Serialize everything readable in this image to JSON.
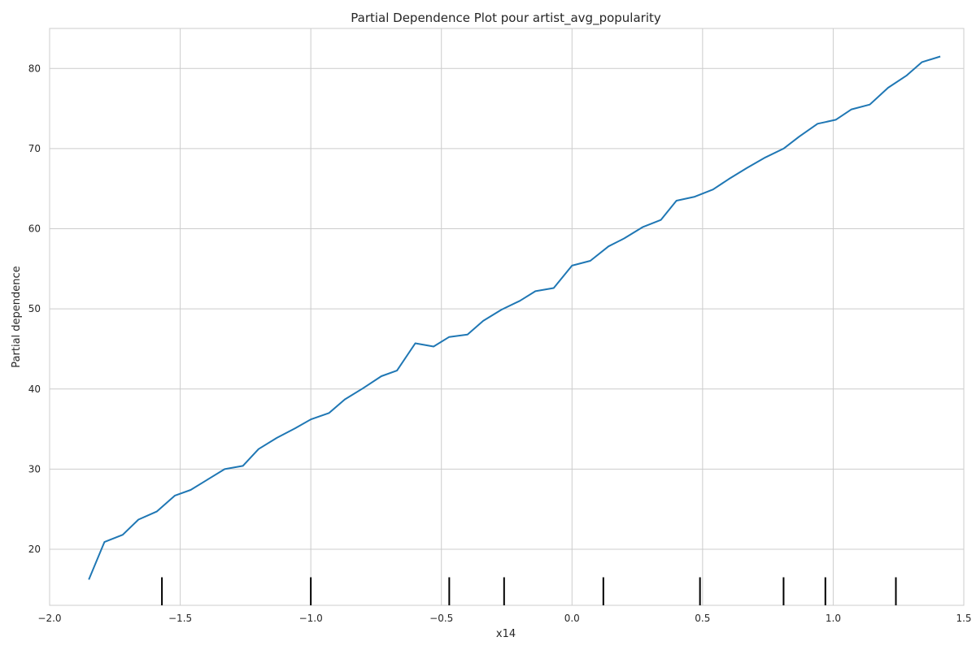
{
  "chart_data": {
    "type": "line",
    "title": "Partial Dependence Plot pour artist_avg_popularity",
    "xlabel": "x14",
    "ylabel": "Partial dependence",
    "xlim": [
      -2.0,
      1.5
    ],
    "ylim": [
      13,
      85
    ],
    "xticks": [
      -2.0,
      -1.5,
      -1.0,
      -0.5,
      0.0,
      0.5,
      1.0,
      1.5
    ],
    "xtick_labels": [
      "−2.0",
      "−1.5",
      "−1.0",
      "−0.5",
      "0.0",
      "0.5",
      "1.0",
      "1.5"
    ],
    "yticks": [
      20,
      30,
      40,
      50,
      60,
      70,
      80
    ],
    "ytick_labels": [
      "20",
      "30",
      "40",
      "50",
      "60",
      "70",
      "80"
    ],
    "grid": true,
    "series": [
      {
        "color": "#1f77b4",
        "x": [
          -1.85,
          -1.79,
          -1.72,
          -1.66,
          -1.59,
          -1.52,
          -1.46,
          -1.39,
          -1.33,
          -1.26,
          -1.2,
          -1.13,
          -1.06,
          -1.0,
          -0.93,
          -0.87,
          -0.8,
          -0.73,
          -0.67,
          -0.6,
          -0.53,
          -0.47,
          -0.4,
          -0.34,
          -0.27,
          -0.2,
          -0.14,
          -0.07,
          0.0,
          0.07,
          0.14,
          0.2,
          0.27,
          0.34,
          0.4,
          0.47,
          0.54,
          0.6,
          0.67,
          0.74,
          0.81,
          0.87,
          0.94,
          1.01,
          1.07,
          1.14,
          1.21,
          1.28,
          1.34,
          1.41
        ],
        "y": [
          16.2,
          20.9,
          21.8,
          23.7,
          24.7,
          26.7,
          27.4,
          28.8,
          30.0,
          30.4,
          32.5,
          33.9,
          35.1,
          36.2,
          37.0,
          38.7,
          40.1,
          41.6,
          42.3,
          45.7,
          45.3,
          46.5,
          46.8,
          48.5,
          49.9,
          51.0,
          52.2,
          52.6,
          55.4,
          56.0,
          57.8,
          58.8,
          60.2,
          61.1,
          63.5,
          64.0,
          64.9,
          66.2,
          67.6,
          68.9,
          70.0,
          71.5,
          73.1,
          73.6,
          74.9,
          75.5,
          77.6,
          79.1,
          80.8,
          81.5
        ]
      }
    ],
    "rug_x": [
      -1.57,
      -1.0,
      -0.47,
      -0.26,
      0.12,
      0.49,
      0.81,
      0.97,
      1.24
    ]
  }
}
